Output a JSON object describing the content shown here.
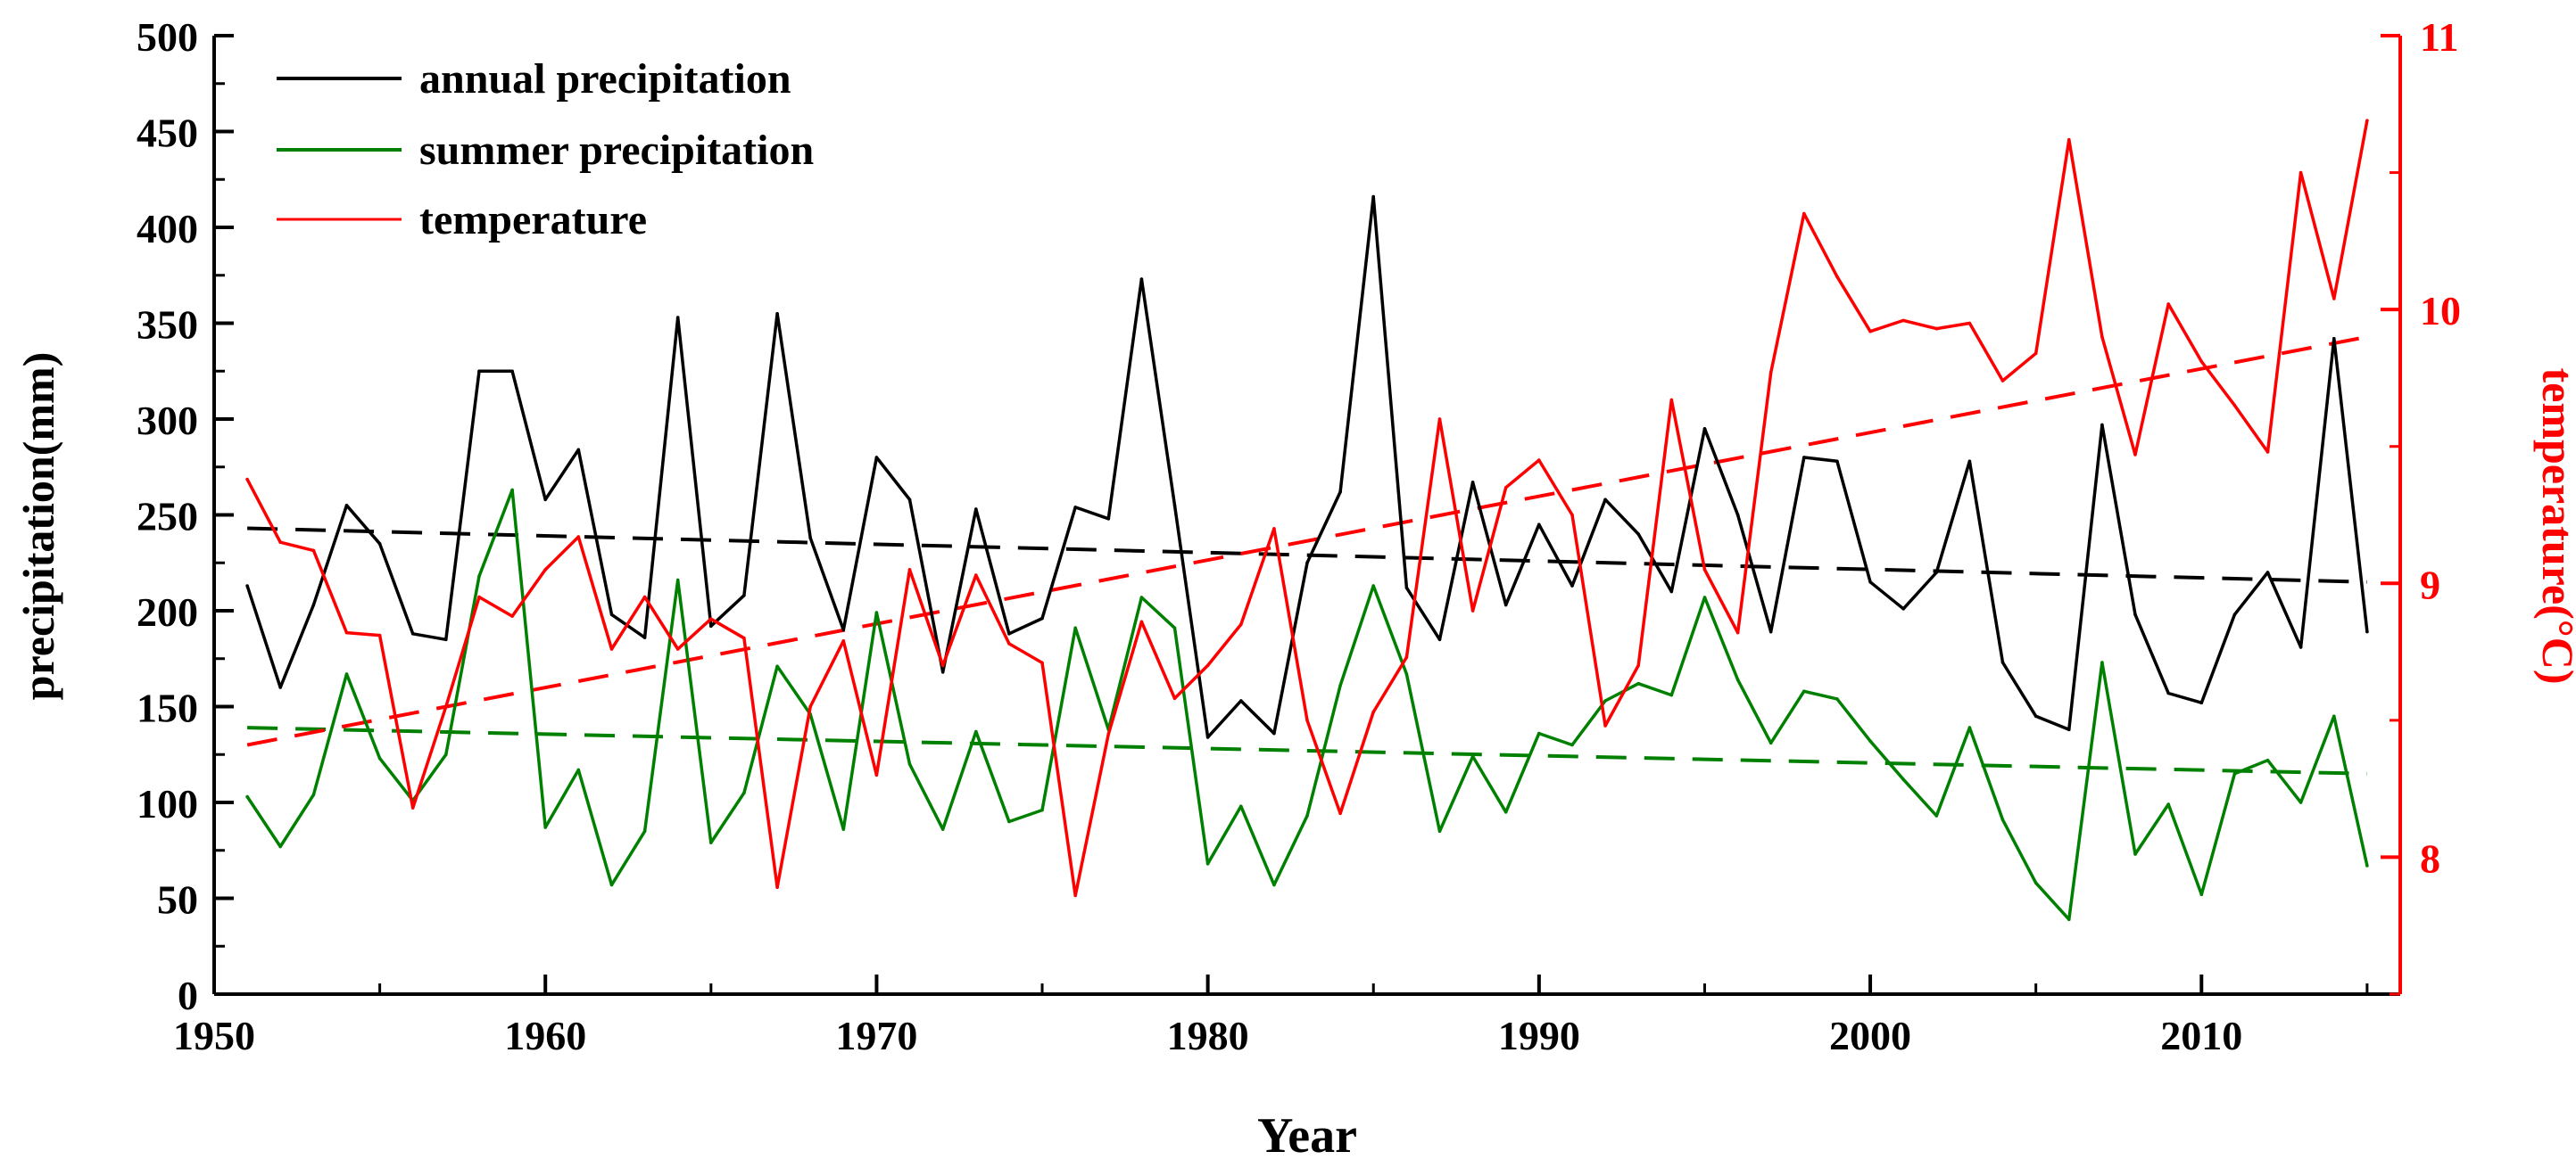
{
  "chart_data": {
    "type": "line",
    "title": "",
    "xlabel": "Year",
    "ylabel": "precipitation(mm)",
    "y2label": "temperature(°C)",
    "xlim": [
      1950,
      2016
    ],
    "ylim": [
      0,
      500
    ],
    "y2lim": [
      7.5,
      11
    ],
    "xticks": [
      1950,
      1960,
      1970,
      1980,
      1990,
      2000,
      2010
    ],
    "yticks": [
      0,
      50,
      100,
      150,
      200,
      250,
      300,
      350,
      400,
      450,
      500
    ],
    "y2ticks": [
      8,
      9,
      10,
      11
    ],
    "legend_position": "top-left",
    "colors": {
      "annual": "#000000",
      "summer": "#008000",
      "temperature": "#ff0000"
    },
    "x": [
      1951,
      1952,
      1953,
      1954,
      1955,
      1956,
      1957,
      1958,
      1959,
      1960,
      1961,
      1962,
      1963,
      1964,
      1965,
      1966,
      1967,
      1968,
      1969,
      1970,
      1971,
      1972,
      1973,
      1974,
      1975,
      1976,
      1977,
      1978,
      1979,
      1980,
      1981,
      1982,
      1983,
      1984,
      1985,
      1986,
      1987,
      1988,
      1989,
      1990,
      1991,
      1992,
      1993,
      1994,
      1995,
      1996,
      1997,
      1998,
      1999,
      2000,
      2001,
      2002,
      2003,
      2004,
      2005,
      2006,
      2007,
      2008,
      2009,
      2010,
      2011,
      2012,
      2013,
      2014,
      2015
    ],
    "series": [
      {
        "name": "annual precipitation",
        "axis": "left",
        "color": "#000000",
        "values": [
          213,
          160,
          203,
          255,
          235,
          188,
          185,
          325,
          325,
          258,
          284,
          198,
          186,
          353,
          192,
          208,
          355,
          238,
          190,
          280,
          258,
          168,
          253,
          188,
          196,
          254,
          248,
          373,
          255,
          134,
          153,
          136,
          225,
          262,
          416,
          212,
          185,
          267,
          203,
          245,
          213,
          258,
          240,
          210,
          295,
          250,
          189,
          280,
          278,
          215,
          201,
          220,
          278,
          173,
          145,
          138,
          297,
          198,
          157,
          152,
          198,
          220,
          181,
          342,
          189
        ]
      },
      {
        "name": "summer precipitation",
        "axis": "left",
        "color": "#008000",
        "values": [
          103,
          77,
          104,
          167,
          123,
          101,
          125,
          218,
          263,
          87,
          117,
          57,
          85,
          216,
          79,
          105,
          171,
          146,
          86,
          199,
          120,
          86,
          137,
          90,
          96,
          191,
          138,
          207,
          191,
          68,
          98,
          57,
          93,
          161,
          213,
          167,
          85,
          124,
          95,
          136,
          130,
          153,
          162,
          156,
          207,
          164,
          131,
          158,
          154,
          132,
          112,
          93,
          139,
          91,
          58,
          39,
          173,
          73,
          99,
          52,
          115,
          122,
          100,
          145,
          67
        ]
      },
      {
        "name": "temperature",
        "axis": "right",
        "color": "#ff0000",
        "values": [
          9.38,
          9.15,
          9.12,
          8.82,
          8.81,
          8.18,
          8.55,
          8.95,
          8.88,
          9.05,
          9.17,
          8.76,
          8.95,
          8.76,
          8.87,
          8.8,
          7.89,
          8.55,
          8.79,
          8.3,
          9.05,
          8.7,
          9.03,
          8.78,
          8.71,
          7.86,
          8.45,
          8.86,
          8.58,
          8.7,
          8.85,
          9.2,
          8.5,
          8.16,
          8.53,
          8.73,
          9.6,
          8.9,
          9.35,
          9.45,
          9.25,
          8.48,
          8.7,
          9.67,
          9.05,
          8.82,
          9.77,
          10.35,
          10.12,
          9.92,
          9.96,
          9.93,
          9.95,
          9.74,
          9.84,
          10.62,
          9.9,
          9.47,
          10.02,
          9.81,
          9.65,
          9.48,
          10.5,
          10.04,
          10.69
        ]
      }
    ],
    "trendlines": [
      {
        "name": "annual precipitation trend",
        "axis": "left",
        "color": "#000000",
        "x": [
          1951,
          2015
        ],
        "values": [
          243,
          215
        ]
      },
      {
        "name": "summer precipitation trend",
        "axis": "left",
        "color": "#008000",
        "x": [
          1951,
          2015
        ],
        "values": [
          139,
          115
        ]
      },
      {
        "name": "temperature trend",
        "axis": "right",
        "color": "#ff0000",
        "x": [
          1951,
          2015
        ],
        "values": [
          8.41,
          9.9
        ]
      }
    ],
    "legend": [
      {
        "label": "annual precipitation",
        "color": "#000000"
      },
      {
        "label": "summer precipitation",
        "color": "#008000"
      },
      {
        "label": "temperature",
        "color": "#ff0000"
      }
    ]
  }
}
